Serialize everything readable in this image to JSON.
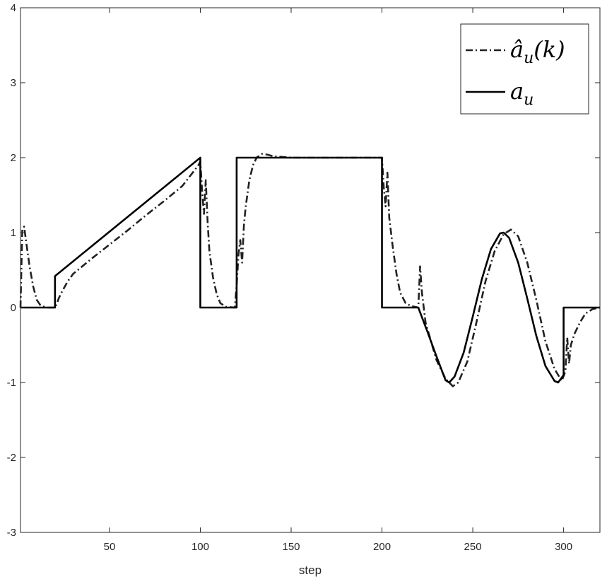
{
  "chart_data": {
    "type": "line",
    "title": "",
    "xlabel": "step",
    "ylabel": "",
    "xlim": [
      1,
      320
    ],
    "ylim": [
      -3,
      4
    ],
    "xticks": [
      50,
      100,
      150,
      200,
      250,
      300
    ],
    "yticks": [
      -3,
      -2,
      -1,
      0,
      1,
      2,
      3,
      4
    ],
    "grid": false,
    "legend_position": "top-right",
    "series": [
      {
        "name": "â_u(k)",
        "legend_main": "â",
        "legend_sub": "u",
        "legend_suffix": "(k)",
        "style": "dash-dot",
        "color": "#222222",
        "points": [
          [
            1,
            0.0
          ],
          [
            2,
            1.05
          ],
          [
            3,
            1.08
          ],
          [
            4,
            0.9
          ],
          [
            6,
            0.55
          ],
          [
            8,
            0.28
          ],
          [
            10,
            0.1
          ],
          [
            12,
            0.03
          ],
          [
            15,
            0.0
          ],
          [
            20,
            0.0
          ],
          [
            21,
            0.05
          ],
          [
            22,
            0.12
          ],
          [
            24,
            0.22
          ],
          [
            27,
            0.35
          ],
          [
            30,
            0.45
          ],
          [
            35,
            0.55
          ],
          [
            40,
            0.65
          ],
          [
            50,
            0.84
          ],
          [
            60,
            1.03
          ],
          [
            70,
            1.23
          ],
          [
            80,
            1.42
          ],
          [
            90,
            1.62
          ],
          [
            99,
            1.9
          ],
          [
            100,
            1.95
          ],
          [
            101,
            1.55
          ],
          [
            102,
            1.25
          ],
          [
            103,
            1.7
          ],
          [
            104,
            1.15
          ],
          [
            105,
            0.75
          ],
          [
            107,
            0.4
          ],
          [
            109,
            0.18
          ],
          [
            111,
            0.06
          ],
          [
            114,
            0.01
          ],
          [
            119,
            0.0
          ],
          [
            120,
            0.3
          ],
          [
            121,
            0.7
          ],
          [
            122,
            0.9
          ],
          [
            123,
            0.6
          ],
          [
            124,
            1.1
          ],
          [
            125,
            1.35
          ],
          [
            127,
            1.7
          ],
          [
            129,
            1.9
          ],
          [
            131,
            2.0
          ],
          [
            134,
            2.05
          ],
          [
            137,
            2.04
          ],
          [
            140,
            2.02
          ],
          [
            150,
            2.0
          ],
          [
            200,
            2.0
          ],
          [
            201,
            1.6
          ],
          [
            202,
            1.35
          ],
          [
            203,
            1.8
          ],
          [
            204,
            1.2
          ],
          [
            206,
            0.8
          ],
          [
            208,
            0.45
          ],
          [
            210,
            0.2
          ],
          [
            213,
            0.06
          ],
          [
            216,
            0.02
          ],
          [
            220,
            0.0
          ],
          [
            221,
            0.55
          ],
          [
            222,
            0.2
          ],
          [
            224,
            -0.2
          ],
          [
            227,
            -0.45
          ],
          [
            230,
            -0.7
          ],
          [
            235,
            -0.95
          ],
          [
            239,
            -1.05
          ],
          [
            242,
            -1.0
          ],
          [
            247,
            -0.72
          ],
          [
            252,
            -0.2
          ],
          [
            257,
            0.35
          ],
          [
            262,
            0.75
          ],
          [
            267,
            0.98
          ],
          [
            271,
            1.04
          ],
          [
            275,
            0.95
          ],
          [
            280,
            0.6
          ],
          [
            285,
            0.1
          ],
          [
            290,
            -0.45
          ],
          [
            295,
            -0.82
          ],
          [
            299,
            -0.98
          ],
          [
            301,
            -0.85
          ],
          [
            302,
            -0.4
          ],
          [
            303,
            -0.75
          ],
          [
            304,
            -0.5
          ],
          [
            306,
            -0.35
          ],
          [
            309,
            -0.2
          ],
          [
            312,
            -0.08
          ],
          [
            316,
            -0.02
          ],
          [
            320,
            0.0
          ]
        ]
      },
      {
        "name": "a_u",
        "legend_main": "a",
        "legend_sub": "u",
        "legend_suffix": "",
        "style": "solid",
        "color": "#000000",
        "points": [
          [
            1,
            0.0
          ],
          [
            20,
            0.0
          ],
          [
            20,
            0.42
          ],
          [
            100,
            2.0
          ],
          [
            100,
            0.0
          ],
          [
            120,
            0.0
          ],
          [
            120,
            2.0
          ],
          [
            200,
            2.0
          ],
          [
            200,
            0.0
          ],
          [
            220,
            0.0
          ],
          [
            225,
            -0.32
          ],
          [
            230,
            -0.65
          ],
          [
            235,
            -0.97
          ],
          [
            237,
            -1.0
          ],
          [
            240,
            -0.92
          ],
          [
            245,
            -0.6
          ],
          [
            250,
            -0.12
          ],
          [
            255,
            0.38
          ],
          [
            260,
            0.78
          ],
          [
            265,
            0.99
          ],
          [
            267,
            1.0
          ],
          [
            270,
            0.93
          ],
          [
            275,
            0.6
          ],
          [
            280,
            0.12
          ],
          [
            285,
            -0.38
          ],
          [
            290,
            -0.78
          ],
          [
            295,
            -0.98
          ],
          [
            297,
            -1.0
          ],
          [
            300,
            -0.9
          ],
          [
            300,
            0.0
          ],
          [
            320,
            0.0
          ]
        ]
      }
    ]
  }
}
